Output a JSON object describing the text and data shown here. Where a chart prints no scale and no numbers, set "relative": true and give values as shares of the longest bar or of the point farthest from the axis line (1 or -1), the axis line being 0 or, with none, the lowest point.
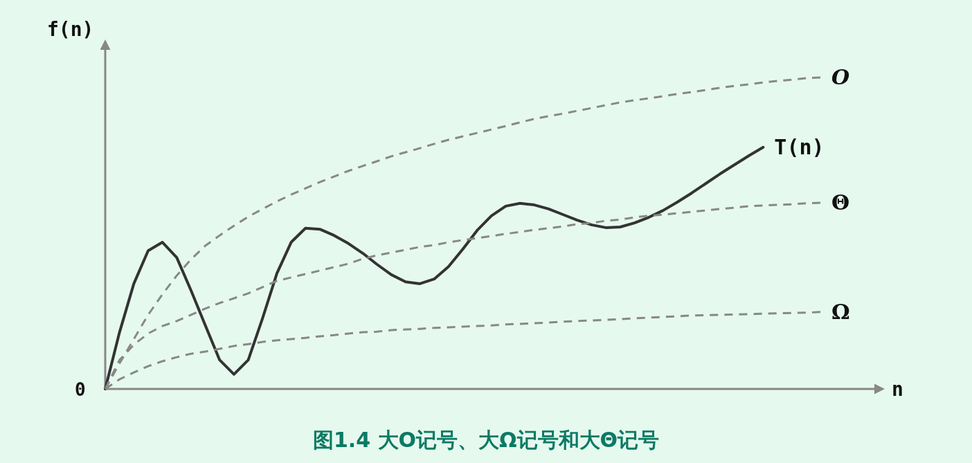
{
  "chart_data": {
    "type": "line",
    "relative": true,
    "title": "图1.4 大O记号、大Ω记号和大Θ记号",
    "xlabel": "n",
    "ylabel": "f(n)",
    "annotations": [
      "0"
    ],
    "legend": false,
    "grid": false,
    "marker": "none",
    "categories": [
      null,
      null,
      null,
      null,
      null,
      null,
      null,
      null,
      null,
      null,
      null,
      null,
      null,
      null,
      null,
      null,
      null,
      null,
      null,
      null,
      null,
      null,
      null,
      null,
      null,
      null,
      null,
      null,
      null,
      null,
      null,
      null,
      null,
      null,
      null,
      null,
      null,
      null,
      null,
      null,
      null,
      null,
      null,
      null,
      null,
      null,
      null,
      null,
      null,
      null,
      null
    ],
    "series": [
      {
        "name": "O",
        "color": "#888888",
        "line_style": "dashed",
        "values": [
          0,
          0.082,
          0.16,
          0.238,
          0.304,
          0.364,
          0.416,
          0.46,
          0.493,
          0.524,
          0.553,
          0.578,
          0.602,
          0.624,
          0.644,
          0.664,
          0.682,
          0.7,
          0.716,
          0.731,
          0.747,
          0.76,
          0.773,
          0.787,
          0.8,
          0.811,
          0.822,
          0.833,
          0.844,
          0.856,
          0.867,
          0.876,
          0.884,
          0.893,
          0.902,
          0.911,
          0.92,
          0.927,
          0.933,
          0.94,
          0.947,
          0.953,
          0.96,
          0.967,
          0.973,
          0.978,
          0.984,
          0.989,
          0.993,
          0.998,
          1
        ]
      },
      {
        "name": "T(n)",
        "color": "#333333",
        "line_style": "solid",
        "values": [
          0,
          0.182,
          0.338,
          0.444,
          0.471,
          0.422,
          0.316,
          0.204,
          0.093,
          0.047,
          0.093,
          0.227,
          0.371,
          0.471,
          0.516,
          0.513,
          0.493,
          0.467,
          0.436,
          0.4,
          0.367,
          0.344,
          0.338,
          0.353,
          0.393,
          0.449,
          0.509,
          0.556,
          0.587,
          0.596,
          0.591,
          0.578,
          0.56,
          0.542,
          0.527,
          0.518,
          0.52,
          0.533,
          0.551,
          0.573,
          0.6,
          0.629,
          0.66,
          0.691,
          0.72,
          0.749,
          0.776,
          null,
          null,
          null,
          null
        ]
      },
      {
        "name": "Θ",
        "color": "#888888",
        "line_style": "dashed",
        "values": [
          0,
          0.093,
          0.142,
          0.178,
          0.202,
          0.218,
          0.238,
          0.258,
          0.276,
          0.291,
          0.307,
          0.327,
          0.347,
          0.358,
          0.369,
          0.38,
          0.391,
          0.402,
          0.418,
          0.429,
          0.438,
          0.447,
          0.456,
          0.462,
          0.471,
          0.478,
          0.484,
          0.491,
          0.498,
          0.504,
          0.511,
          0.516,
          0.522,
          0.529,
          0.533,
          0.54,
          0.544,
          0.551,
          0.556,
          0.56,
          0.564,
          0.569,
          0.573,
          0.578,
          0.582,
          0.587,
          0.589,
          0.591,
          0.593,
          0.596,
          0.598
        ]
      },
      {
        "name": "Ω",
        "color": "#888888",
        "line_style": "dashed",
        "values": [
          0,
          0.031,
          0.053,
          0.073,
          0.089,
          0.102,
          0.113,
          0.12,
          0.129,
          0.138,
          0.144,
          0.151,
          0.156,
          0.16,
          0.164,
          0.169,
          0.173,
          0.178,
          0.182,
          0.184,
          0.189,
          0.191,
          0.193,
          0.196,
          0.198,
          0.2,
          0.202,
          0.204,
          0.207,
          0.209,
          0.211,
          0.213,
          0.216,
          0.218,
          0.22,
          0.222,
          0.224,
          0.227,
          0.229,
          0.231,
          0.233,
          0.236,
          0.237,
          0.238,
          0.239,
          0.24,
          0.242,
          0.243,
          0.244,
          0.245,
          0.247
        ]
      }
    ]
  }
}
